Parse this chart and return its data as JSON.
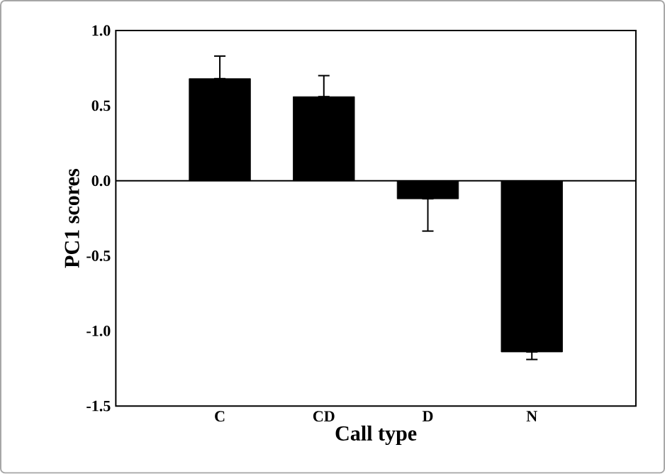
{
  "chart_data": {
    "type": "bar",
    "xlabel": "Call type",
    "ylabel": "PC1 scores",
    "categories": [
      "C",
      "CD",
      "D",
      "N"
    ],
    "values": [
      0.68,
      0.56,
      -0.12,
      -1.14
    ],
    "errors": [
      [
        0.68,
        0.83
      ],
      [
        0.56,
        0.7
      ],
      [
        -0.335,
        -0.12
      ],
      [
        -1.19,
        -1.14
      ]
    ],
    "color": "#000000",
    "ylim": [
      -1.5,
      1.0
    ],
    "yticks": [
      {
        "value": -1.5,
        "label": "-1.5"
      },
      {
        "value": -1.0,
        "label": "-1.0"
      },
      {
        "value": -0.5,
        "label": "-0.5"
      },
      {
        "value": 0.0,
        "label": "0.0"
      },
      {
        "value": 0.5,
        "label": "0.5"
      },
      {
        "value": 1.0,
        "label": "1.0"
      }
    ],
    "ref_lines": [
      {
        "axis": "y",
        "value": 0
      }
    ]
  }
}
